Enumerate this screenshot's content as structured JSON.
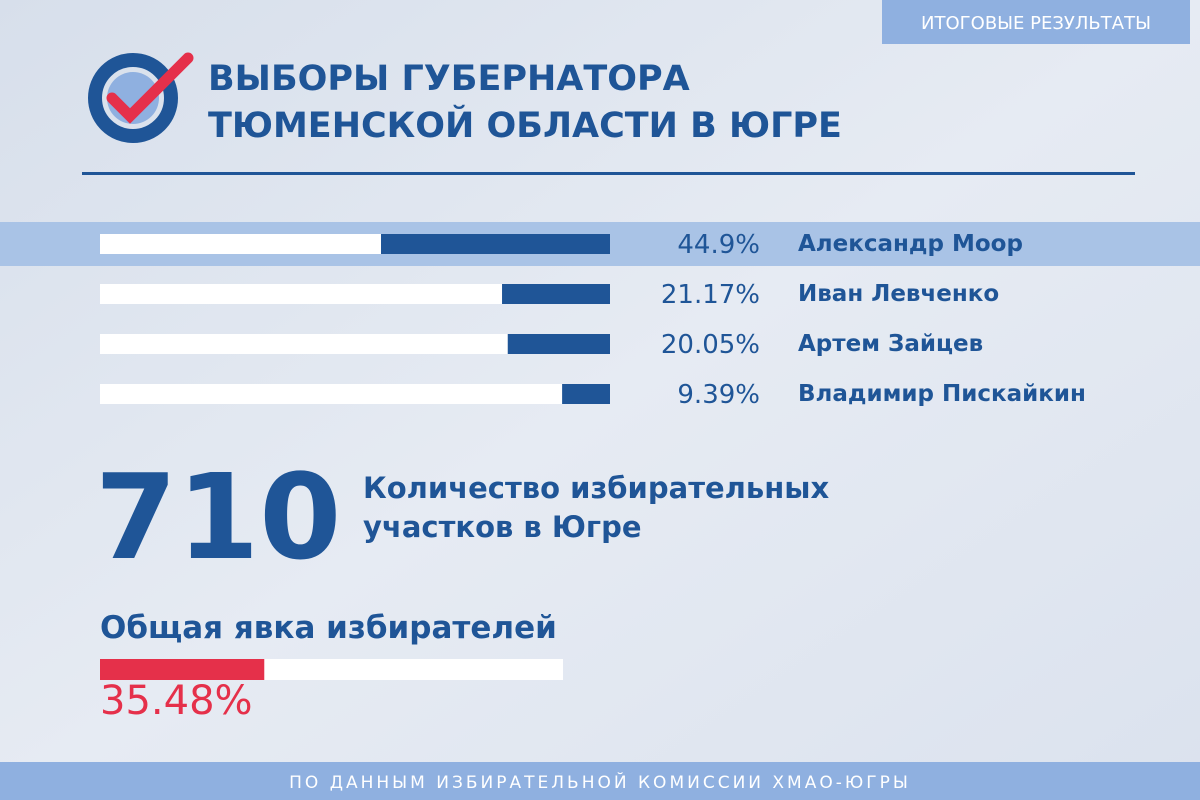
{
  "badge": "ИТОГОВЫЕ РЕЗУЛЬТАТЫ",
  "header": {
    "title_lines": [
      "ВЫБОРЫ ГУБЕРНАТОРА",
      "ТЮМЕНСКОЙ ОБЛАСТИ В ЮГРЕ"
    ]
  },
  "chart_data": {
    "type": "bar",
    "orientation": "horizontal",
    "categories": [
      "Александр Моор",
      "Иван Левченко",
      "Артем Зайцев",
      "Владимир Пискайкин"
    ],
    "values": [
      44.9,
      21.17,
      20.05,
      9.39
    ],
    "value_labels": [
      "44.9%",
      "21.17%",
      "20.05%",
      "9.39%"
    ],
    "color": "#1f5597",
    "xlim": [
      0,
      100
    ]
  },
  "stations": {
    "value": 710,
    "caption_lines": [
      "Количество избирательных",
      "участков в Югре"
    ]
  },
  "turnout": {
    "title": "Общая явка избирателей",
    "value": 35.48,
    "label": "35.48%",
    "color": "#e5304a",
    "xlim": [
      0,
      100
    ]
  },
  "footer": "ПО ДАННЫМ ИЗБИРАТЕЛЬНОЙ КОМИССИИ ХМАО-ЮГРЫ"
}
